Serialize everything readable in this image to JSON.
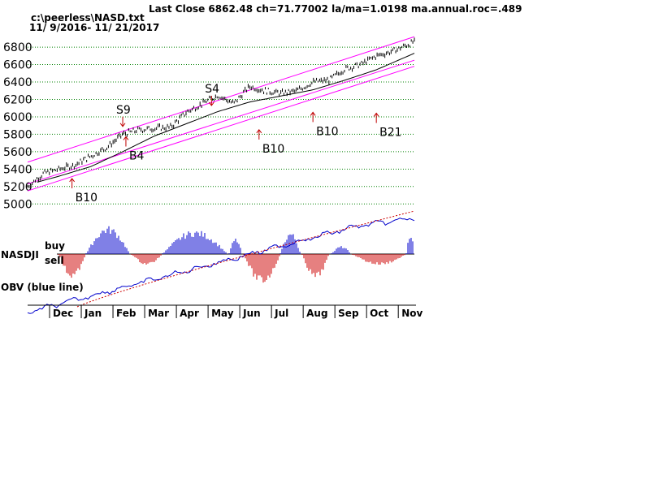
{
  "header": {
    "title": "Last Close 6862.48 ch=71.77002  la/ma=1.0198 ma.annual.roc=.489",
    "file": "c:\\peerless\\NASD.txt",
    "range": "11/ 9/2016- 11/ 21/2017"
  },
  "colors": {
    "price": "#000000",
    "ma": "#000000",
    "band": "#ff00ff",
    "grid": "#008000",
    "arrow": "#c00000",
    "buy": "#0000cc",
    "sell": "#cc0000",
    "obv": "#0000cc",
    "obv_ma": "#cc0000"
  },
  "chart_data": {
    "type": "line",
    "title": "Last Close 6862.48 ch=71.77002  la/ma=1.0198 ma.annual.roc=.489",
    "subtitle": "NASD",
    "ylim": [
      4900,
      6950
    ],
    "yticks": [
      5000,
      5200,
      5400,
      5600,
      5800,
      6000,
      6200,
      6400,
      6600,
      6800
    ],
    "month_labels": [
      "Dec",
      "Jan",
      "Feb",
      "Mar",
      "Apr",
      "May",
      "Jun",
      "Jul",
      "Aug",
      "Sep",
      "Oct",
      "Nov"
    ],
    "month_x": [
      1,
      2,
      3,
      4,
      5,
      6,
      7,
      8,
      9,
      10,
      11,
      12
    ],
    "price_keypoints": {
      "x": [
        0,
        0.5,
        1,
        1.5,
        2,
        2.5,
        3,
        3.5,
        4,
        4.5,
        5,
        5.5,
        6,
        6.5,
        7,
        7.5,
        8,
        8.5,
        9,
        9.5,
        10,
        10.5,
        11,
        11.5,
        12.2
      ],
      "y": [
        5200,
        5350,
        5400,
        5450,
        5550,
        5650,
        5800,
        5850,
        5870,
        5880,
        6050,
        6150,
        6250,
        6150,
        6350,
        6300,
        6270,
        6300,
        6400,
        6420,
        6550,
        6600,
        6700,
        6750,
        6862.48
      ]
    },
    "ma_keypoints": {
      "x": [
        0.3,
        1,
        2,
        3,
        4,
        5,
        6,
        7,
        8,
        9,
        10,
        11,
        12.2
      ],
      "y": [
        5250,
        5320,
        5430,
        5600,
        5780,
        5920,
        6060,
        6170,
        6240,
        6310,
        6420,
        6540,
        6730
      ]
    },
    "upper_band": {
      "x": [
        0,
        12.2
      ],
      "y": [
        5480,
        6920
      ]
    },
    "mid_band": {
      "x": [
        0,
        12.2
      ],
      "y": [
        5230,
        6650
      ]
    },
    "lower_band": {
      "x": [
        0,
        12.2
      ],
      "y": [
        5150,
        6580
      ]
    },
    "signals": [
      {
        "label": "S9",
        "type": "sell",
        "x": 3.0,
        "y": 5890
      },
      {
        "label": "B4",
        "type": "buy",
        "x": 3.1,
        "y": 5660
      },
      {
        "label": "B10",
        "type": "buy",
        "x": 1.4,
        "y": 5180
      },
      {
        "label": "S4",
        "type": "sell",
        "x": 5.8,
        "y": 6130
      },
      {
        "label": "B10",
        "type": "buy",
        "x": 7.3,
        "y": 5740
      },
      {
        "label": "B10",
        "type": "buy",
        "x": 9.0,
        "y": 5940
      },
      {
        "label": "B21",
        "type": "buy",
        "x": 11.0,
        "y": 5930
      }
    ],
    "obv_label": "OBV (blue line)",
    "nasdji_label": "NASDJI",
    "buy_label": "buy",
    "sell_label": "sell"
  }
}
